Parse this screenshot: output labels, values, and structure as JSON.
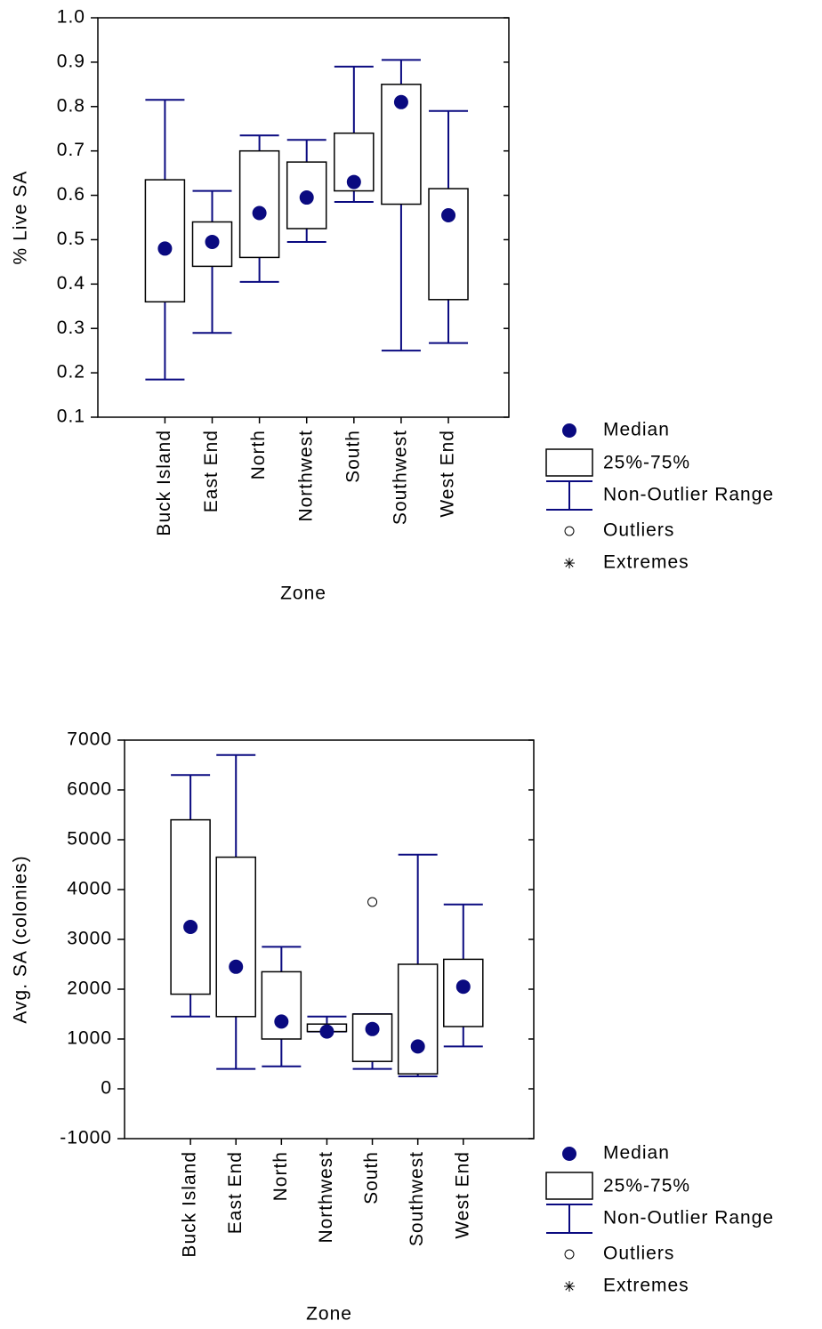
{
  "chart_data": [
    {
      "type": "box",
      "y_label": "% Live SA",
      "x_label": "Zone",
      "color": "#0a0a80",
      "categories": [
        "Buck Island",
        "East End",
        "North",
        "Northwest",
        "South",
        "Southwest",
        "West End"
      ],
      "max": [
        0.815,
        0.61,
        0.735,
        0.725,
        0.89,
        0.905,
        0.79
      ],
      "q3": [
        0.635,
        0.54,
        0.7,
        0.675,
        0.74,
        0.85,
        0.615
      ],
      "median": [
        0.48,
        0.495,
        0.56,
        0.595,
        0.63,
        0.81,
        0.555
      ],
      "q1": [
        0.36,
        0.44,
        0.46,
        0.525,
        0.61,
        0.58,
        0.365
      ],
      "min": [
        0.185,
        0.29,
        0.405,
        0.495,
        0.585,
        0.25,
        0.267
      ],
      "outliers": [
        [],
        [],
        [],
        [],
        [],
        [],
        []
      ],
      "ylim": [
        0.1,
        1
      ],
      "yticks": [
        0.1,
        0.2,
        0.3,
        0.4,
        0.5,
        0.6,
        0.7,
        0.8,
        0.9,
        {
          "value": 1,
          "label": "1.0"
        }
      ],
      "legend": [
        "Median",
        "25%-75%",
        "Non-Outlier Range",
        "Outliers",
        "Extremes"
      ]
    },
    {
      "type": "box",
      "y_label": "Avg. SA (colonies)",
      "x_label": "Zone",
      "color": "#0a0a80",
      "categories": [
        "Buck Island",
        "East End",
        "North",
        "Northwest",
        "South",
        "Southwest",
        "West End"
      ],
      "max": [
        6300,
        6700,
        2850,
        1450,
        1500,
        4700,
        3700
      ],
      "q3": [
        5400,
        4650,
        2350,
        1300,
        1500,
        2500,
        2600
      ],
      "median": [
        3250,
        2450,
        1350,
        1150,
        1200,
        850,
        2050
      ],
      "q1": [
        1900,
        1450,
        1000,
        1150,
        550,
        300,
        1250
      ],
      "min": [
        1450,
        400,
        450,
        1150,
        400,
        250,
        850
      ],
      "outliers": [
        [],
        [],
        [],
        [],
        [
          3750
        ],
        [],
        []
      ],
      "ylim": [
        -1000,
        7000
      ],
      "yticks": [
        -1000,
        0,
        1000,
        2000,
        3000,
        4000,
        5000,
        6000,
        7000
      ],
      "legend": [
        "Median",
        "25%-75%",
        "Non-Outlier Range",
        "Outliers",
        "Extremes"
      ]
    }
  ]
}
